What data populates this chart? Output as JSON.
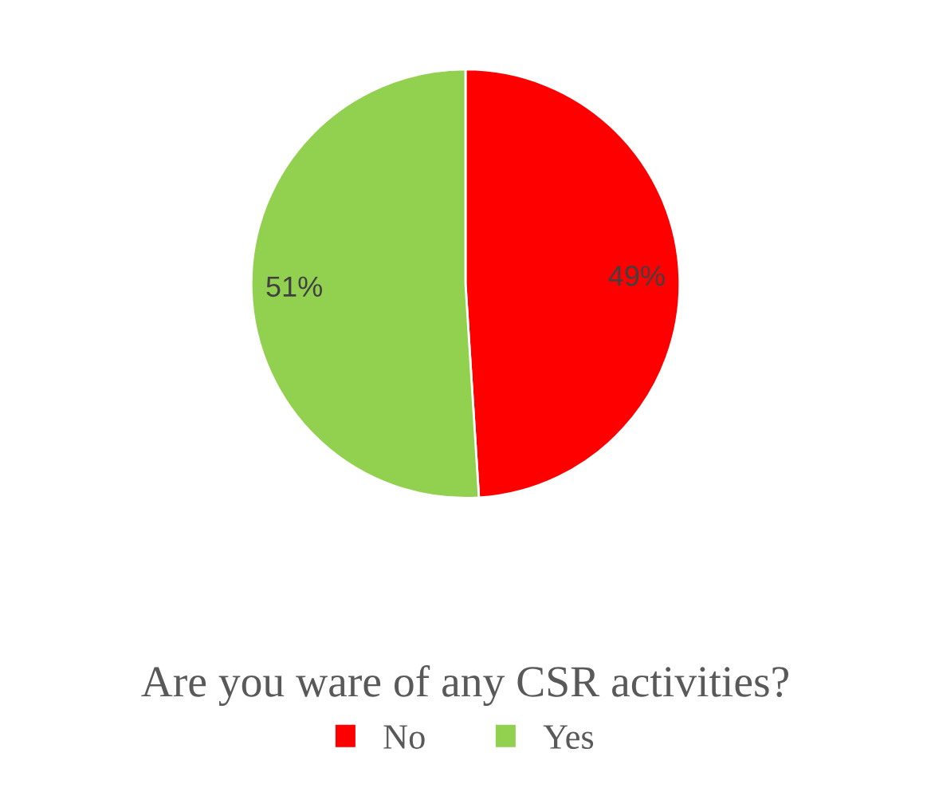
{
  "chart_data": {
    "type": "pie",
    "title": "Are you ware of any CSR activities?",
    "categories": [
      "No",
      "Yes"
    ],
    "values": [
      49,
      51
    ],
    "colors": [
      "#ff0000",
      "#92d050"
    ],
    "value_labels": [
      "49%",
      "51%"
    ],
    "legend": "bottom"
  }
}
